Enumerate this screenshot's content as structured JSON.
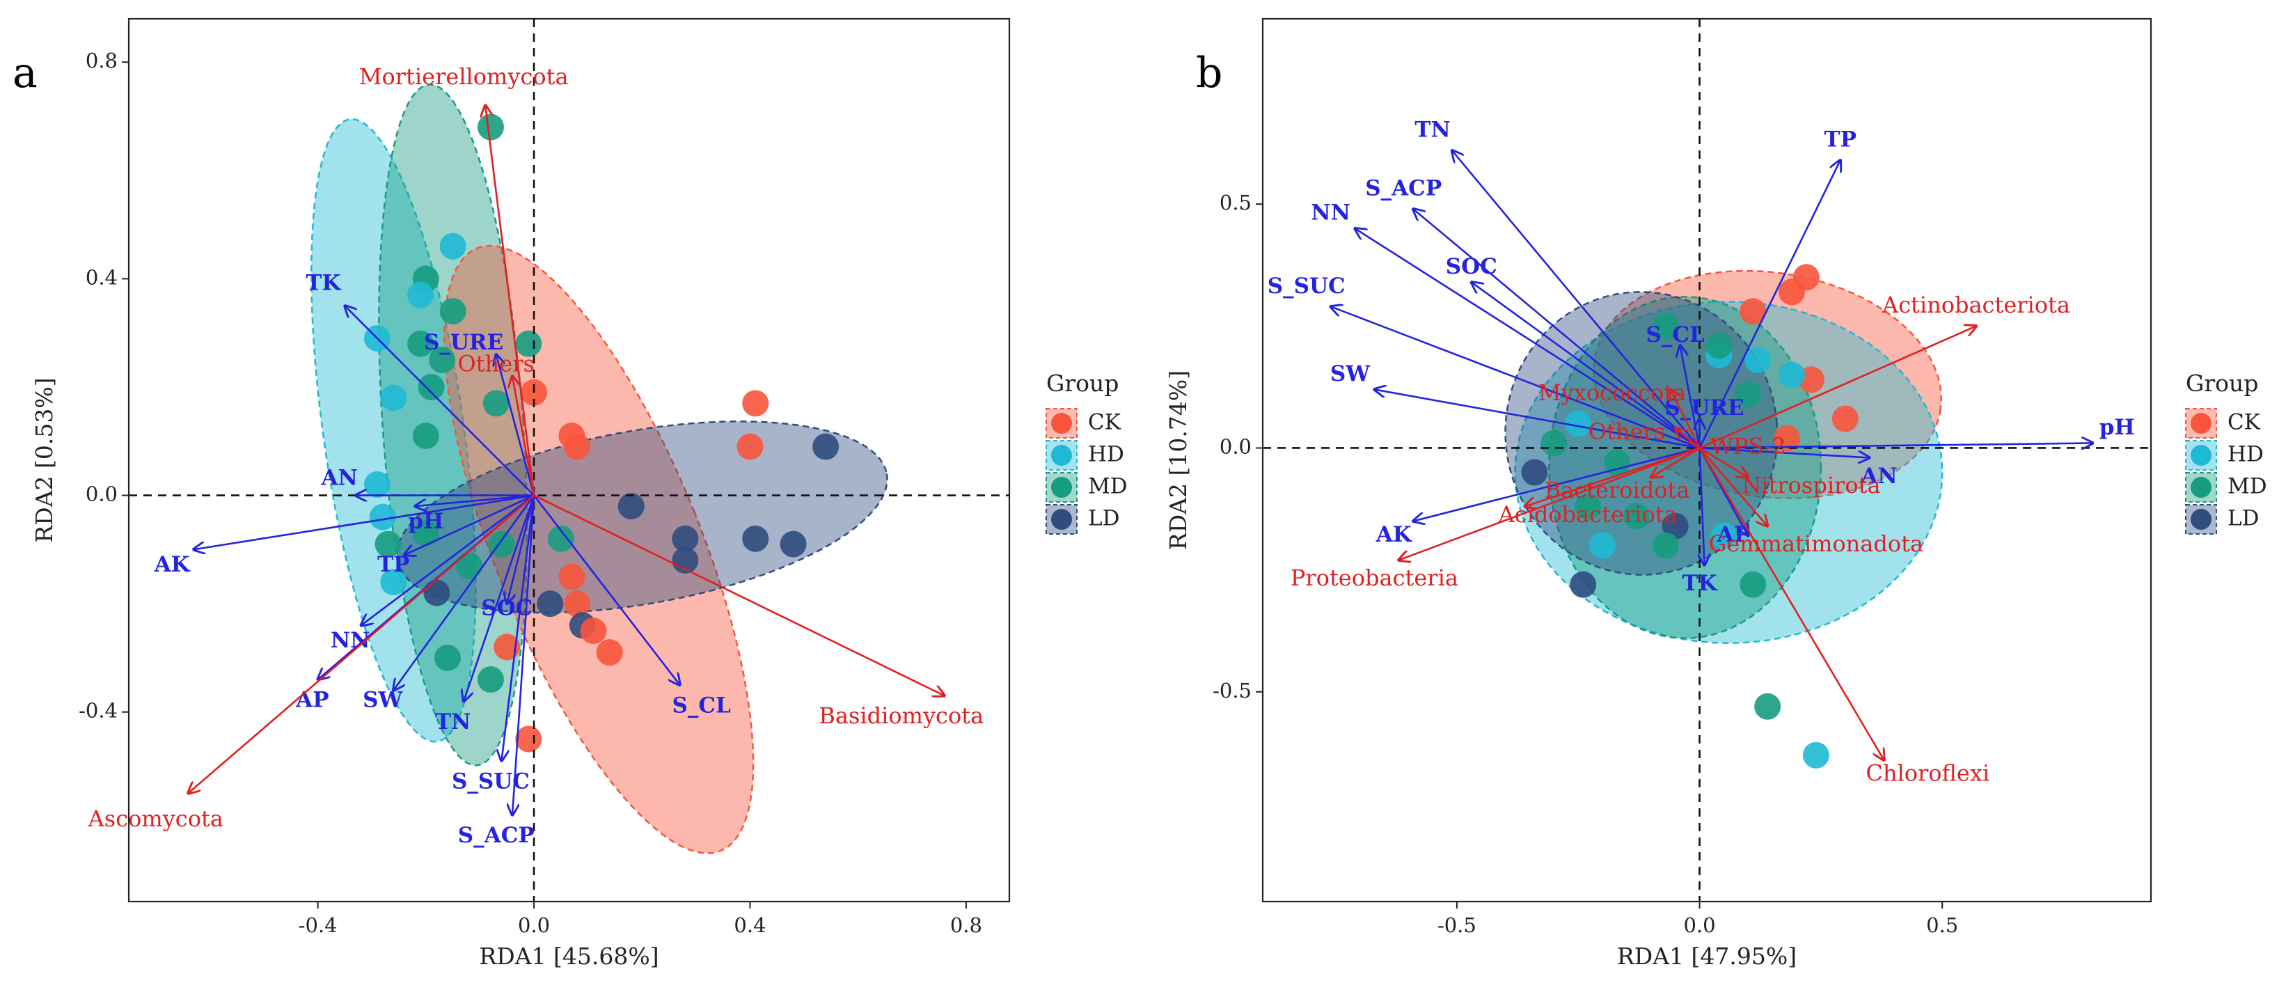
{
  "colors": {
    "CK": "#F8553C",
    "HD": "#1FB9D5",
    "MD": "#169C80",
    "LD": "#2F4D7E",
    "env_arrow": "#2323E0",
    "species_arrow": "#E02020"
  },
  "chart_data": [
    {
      "panel": "a",
      "type": "scatter",
      "xlabel": "RDA1 [45.68%]",
      "ylabel": "RDA2 [0.53%]",
      "xlim": [
        -0.75,
        0.88
      ],
      "ylim": [
        -0.75,
        0.88
      ],
      "xticks": [
        -0.4,
        0.0,
        0.4,
        0.8
      ],
      "yticks": [
        -0.4,
        0.0,
        0.4,
        0.8
      ],
      "xtick_labels": [
        "-0.4",
        "0.0",
        "0.4",
        "0.8"
      ],
      "ytick_labels": [
        "-0.4",
        "0.0",
        "0.4",
        "0.8"
      ],
      "grid": false,
      "legend_title": "Group",
      "legend": [
        {
          "key": "CK",
          "label": "CK"
        },
        {
          "key": "HD",
          "label": "HD"
        },
        {
          "key": "MD",
          "label": "MD"
        },
        {
          "key": "LD",
          "label": "LD"
        }
      ],
      "legend_position": "right",
      "ellipses": [
        {
          "group": "HD",
          "cx": -0.26,
          "cy": 0.12,
          "rx": 0.13,
          "ry": 0.58,
          "angle": 8
        },
        {
          "group": "MD",
          "cx": -0.15,
          "cy": 0.13,
          "rx": 0.13,
          "ry": 0.63,
          "angle": 4
        },
        {
          "group": "CK",
          "cx": 0.12,
          "cy": -0.1,
          "rx": 0.19,
          "ry": 0.6,
          "angle": 22
        },
        {
          "group": "LD",
          "cx": 0.2,
          "cy": -0.04,
          "rx": 0.46,
          "ry": 0.16,
          "angle": 10
        }
      ],
      "points": [
        {
          "group": "MD",
          "x": -0.08,
          "y": 0.68
        },
        {
          "group": "HD",
          "x": -0.15,
          "y": 0.46
        },
        {
          "group": "MD",
          "x": -0.2,
          "y": 0.4
        },
        {
          "group": "HD",
          "x": -0.21,
          "y": 0.37
        },
        {
          "group": "MD",
          "x": -0.15,
          "y": 0.34
        },
        {
          "group": "HD",
          "x": -0.29,
          "y": 0.29
        },
        {
          "group": "MD",
          "x": -0.21,
          "y": 0.28
        },
        {
          "group": "MD",
          "x": -0.17,
          "y": 0.25
        },
        {
          "group": "MD",
          "x": -0.01,
          "y": 0.28
        },
        {
          "group": "CK",
          "x": 0.0,
          "y": 0.19
        },
        {
          "group": "HD",
          "x": -0.26,
          "y": 0.18
        },
        {
          "group": "MD",
          "x": -0.19,
          "y": 0.2
        },
        {
          "group": "MD",
          "x": -0.07,
          "y": 0.17
        },
        {
          "group": "MD",
          "x": -0.2,
          "y": 0.11
        },
        {
          "group": "CK",
          "x": 0.07,
          "y": 0.11
        },
        {
          "group": "CK",
          "x": 0.08,
          "y": 0.09
        },
        {
          "group": "CK",
          "x": 0.41,
          "y": 0.17
        },
        {
          "group": "CK",
          "x": 0.4,
          "y": 0.09
        },
        {
          "group": "LD",
          "x": 0.54,
          "y": 0.09
        },
        {
          "group": "HD",
          "x": -0.29,
          "y": 0.02
        },
        {
          "group": "HD",
          "x": -0.28,
          "y": -0.04
        },
        {
          "group": "MD",
          "x": -0.27,
          "y": -0.09
        },
        {
          "group": "HD",
          "x": -0.26,
          "y": -0.16
        },
        {
          "group": "MD",
          "x": -0.2,
          "y": -0.07
        },
        {
          "group": "MD",
          "x": -0.12,
          "y": -0.13
        },
        {
          "group": "MD",
          "x": -0.06,
          "y": -0.09
        },
        {
          "group": "MD",
          "x": 0.05,
          "y": -0.08
        },
        {
          "group": "LD",
          "x": 0.18,
          "y": -0.02
        },
        {
          "group": "LD",
          "x": 0.28,
          "y": -0.08
        },
        {
          "group": "LD",
          "x": 0.28,
          "y": -0.12
        },
        {
          "group": "LD",
          "x": 0.41,
          "y": -0.08
        },
        {
          "group": "LD",
          "x": 0.48,
          "y": -0.09
        },
        {
          "group": "CK",
          "x": 0.07,
          "y": -0.15
        },
        {
          "group": "CK",
          "x": 0.08,
          "y": -0.2
        },
        {
          "group": "LD",
          "x": 0.03,
          "y": -0.2
        },
        {
          "group": "LD",
          "x": 0.09,
          "y": -0.24
        },
        {
          "group": "CK",
          "x": 0.11,
          "y": -0.25
        },
        {
          "group": "CK",
          "x": 0.14,
          "y": -0.29
        },
        {
          "group": "CK",
          "x": -0.05,
          "y": -0.28
        },
        {
          "group": "MD",
          "x": -0.16,
          "y": -0.3
        },
        {
          "group": "MD",
          "x": -0.08,
          "y": -0.34
        },
        {
          "group": "CK",
          "x": -0.01,
          "y": -0.45
        },
        {
          "group": "LD",
          "x": -0.18,
          "y": -0.18
        }
      ],
      "env_vectors": [
        {
          "label": "TK",
          "x": -0.35,
          "y": 0.35,
          "label_dx": -0.04,
          "label_dy": 0.04
        },
        {
          "label": "S_URE",
          "x": -0.07,
          "y": 0.26,
          "label_dx": -0.06,
          "label_dy": 0.02
        },
        {
          "label": "AN",
          "x": -0.33,
          "y": 0.0,
          "label_dx": -0.03,
          "label_dy": 0.03
        },
        {
          "label": "pH",
          "x": -0.22,
          "y": -0.02,
          "label_dx": 0.02,
          "label_dy": -0.03
        },
        {
          "label": "AK",
          "x": -0.63,
          "y": -0.1,
          "label_dx": -0.04,
          "label_dy": -0.03
        },
        {
          "label": "TP",
          "x": -0.24,
          "y": -0.11,
          "label_dx": -0.02,
          "label_dy": -0.02
        },
        {
          "label": "NN",
          "x": -0.32,
          "y": -0.24,
          "label_dx": -0.02,
          "label_dy": -0.03
        },
        {
          "label": "AP",
          "x": -0.4,
          "y": -0.34,
          "label_dx": -0.01,
          "label_dy": -0.04
        },
        {
          "label": "SW",
          "x": -0.26,
          "y": -0.36,
          "label_dx": -0.02,
          "label_dy": -0.02
        },
        {
          "label": "SOC",
          "x": -0.05,
          "y": -0.2,
          "label_dx": 0.0,
          "label_dy": -0.01
        },
        {
          "label": "TN",
          "x": -0.13,
          "y": -0.38,
          "label_dx": -0.02,
          "label_dy": -0.04
        },
        {
          "label": "S_SUC",
          "x": -0.06,
          "y": -0.49,
          "label_dx": -0.02,
          "label_dy": -0.04
        },
        {
          "label": "S_ACP",
          "x": -0.04,
          "y": -0.59,
          "label_dx": -0.03,
          "label_dy": -0.04
        },
        {
          "label": "S_CL",
          "x": 0.27,
          "y": -0.35,
          "label_dx": 0.04,
          "label_dy": -0.04
        }
      ],
      "species_vectors": [
        {
          "label": "Mortierellomycota",
          "x": -0.09,
          "y": 0.72,
          "label_dx": -0.04,
          "label_dy": 0.05
        },
        {
          "label": "Others",
          "x": -0.04,
          "y": 0.22,
          "label_dx": -0.03,
          "label_dy": 0.02
        },
        {
          "label": "Ascomycota",
          "x": -0.64,
          "y": -0.55,
          "label_dx": -0.06,
          "label_dy": -0.05
        },
        {
          "label": "Basidiomycota",
          "x": 0.76,
          "y": -0.37,
          "label_dx": -0.08,
          "label_dy": -0.04
        }
      ]
    },
    {
      "panel": "b",
      "type": "scatter",
      "xlabel": "RDA1 [47.95%]",
      "ylabel": "RDA2 [10.74%]",
      "xlim": [
        -0.9,
        0.93
      ],
      "ylim": [
        -0.93,
        0.88
      ],
      "xticks": [
        -0.5,
        0.0,
        0.5
      ],
      "yticks": [
        -0.5,
        0.0,
        0.5
      ],
      "xtick_labels": [
        "-0.5",
        "0.0",
        "0.5"
      ],
      "ytick_labels": [
        "-0.5",
        "0.0",
        "0.5"
      ],
      "grid": false,
      "legend_title": "Group",
      "legend": [
        {
          "key": "CK",
          "label": "CK"
        },
        {
          "key": "HD",
          "label": "HD"
        },
        {
          "key": "MD",
          "label": "MD"
        },
        {
          "key": "LD",
          "label": "LD"
        }
      ],
      "legend_position": "right",
      "ellipses": [
        {
          "group": "CK",
          "cx": 0.14,
          "cy": 0.13,
          "rx": 0.36,
          "ry": 0.23,
          "angle": -8
        },
        {
          "group": "HD",
          "cx": 0.06,
          "cy": -0.05,
          "rx": 0.44,
          "ry": 0.35,
          "angle": 0
        },
        {
          "group": "MD",
          "cx": -0.03,
          "cy": -0.04,
          "rx": 0.28,
          "ry": 0.35,
          "angle": 0
        },
        {
          "group": "LD",
          "cx": -0.12,
          "cy": 0.03,
          "rx": 0.28,
          "ry": 0.29,
          "angle": 5
        }
      ],
      "points": [
        {
          "group": "CK",
          "x": 0.22,
          "y": 0.35
        },
        {
          "group": "CK",
          "x": 0.19,
          "y": 0.32
        },
        {
          "group": "CK",
          "x": 0.11,
          "y": 0.28
        },
        {
          "group": "CK",
          "x": 0.23,
          "y": 0.14
        },
        {
          "group": "CK",
          "x": 0.3,
          "y": 0.06
        },
        {
          "group": "CK",
          "x": 0.18,
          "y": 0.02
        },
        {
          "group": "MD",
          "x": -0.07,
          "y": 0.25
        },
        {
          "group": "HD",
          "x": 0.04,
          "y": 0.19
        },
        {
          "group": "MD",
          "x": 0.04,
          "y": 0.21
        },
        {
          "group": "HD",
          "x": 0.12,
          "y": 0.18
        },
        {
          "group": "HD",
          "x": 0.19,
          "y": 0.15
        },
        {
          "group": "MD",
          "x": 0.1,
          "y": 0.11
        },
        {
          "group": "MD",
          "x": -0.3,
          "y": 0.01
        },
        {
          "group": "HD",
          "x": -0.25,
          "y": 0.05
        },
        {
          "group": "MD",
          "x": -0.17,
          "y": -0.03
        },
        {
          "group": "MD",
          "x": -0.23,
          "y": -0.12
        },
        {
          "group": "MD",
          "x": -0.13,
          "y": -0.14
        },
        {
          "group": "LD",
          "x": -0.34,
          "y": -0.05
        },
        {
          "group": "LD",
          "x": -0.24,
          "y": -0.28
        },
        {
          "group": "LD",
          "x": -0.05,
          "y": -0.16
        },
        {
          "group": "HD",
          "x": -0.2,
          "y": -0.2
        },
        {
          "group": "MD",
          "x": -0.07,
          "y": -0.2
        },
        {
          "group": "MD",
          "x": 0.11,
          "y": -0.28
        },
        {
          "group": "HD",
          "x": 0.05,
          "y": -0.18
        },
        {
          "group": "MD",
          "x": 0.14,
          "y": -0.53
        },
        {
          "group": "HD",
          "x": 0.24,
          "y": -0.63
        }
      ],
      "env_vectors": [
        {
          "label": "TN",
          "x": -0.51,
          "y": 0.61,
          "label_dx": -0.04,
          "label_dy": 0.04
        },
        {
          "label": "TP",
          "x": 0.29,
          "y": 0.59,
          "label_dx": 0.0,
          "label_dy": 0.04
        },
        {
          "label": "S_ACP",
          "x": -0.59,
          "y": 0.49,
          "label_dx": -0.02,
          "label_dy": 0.04
        },
        {
          "label": "NN",
          "x": -0.71,
          "y": 0.45,
          "label_dx": -0.05,
          "label_dy": 0.03
        },
        {
          "label": "SOC",
          "x": -0.47,
          "y": 0.34,
          "label_dx": 0.0,
          "label_dy": 0.03
        },
        {
          "label": "S_SUC",
          "x": -0.76,
          "y": 0.29,
          "label_dx": -0.05,
          "label_dy": 0.04
        },
        {
          "label": "SW",
          "x": -0.67,
          "y": 0.12,
          "label_dx": -0.05,
          "label_dy": 0.03
        },
        {
          "label": "S_CL",
          "x": -0.04,
          "y": 0.21,
          "label_dx": -0.01,
          "label_dy": 0.02
        },
        {
          "label": "S_URE",
          "x": 0.0,
          "y": 0.06,
          "label_dx": 0.01,
          "label_dy": 0.02
        },
        {
          "label": "pH",
          "x": 0.81,
          "y": 0.01,
          "label_dx": 0.05,
          "label_dy": 0.03
        },
        {
          "label": "AN",
          "x": 0.35,
          "y": -0.02,
          "label_dx": 0.02,
          "label_dy": -0.04
        },
        {
          "label": "AK",
          "x": -0.59,
          "y": -0.15,
          "label_dx": -0.04,
          "label_dy": -0.03
        },
        {
          "label": "AP",
          "x": 0.1,
          "y": -0.18,
          "label_dx": -0.03,
          "label_dy": 0.0
        },
        {
          "label": "TK",
          "x": 0.01,
          "y": -0.24,
          "label_dx": -0.01,
          "label_dy": -0.04
        }
      ],
      "species_vectors": [
        {
          "label": "Actinobacteriota",
          "x": 0.57,
          "y": 0.25,
          "label_dx": 0.0,
          "label_dy": 0.04
        },
        {
          "label": "Myxococcota",
          "x": -0.06,
          "y": 0.12,
          "label_dx": -0.12,
          "label_dy": -0.01
        },
        {
          "label": "Others",
          "x": -0.05,
          "y": 0.04,
          "label_dx": -0.1,
          "label_dy": -0.01
        },
        {
          "label": "WPS-2",
          "x": 0.0,
          "y": 0.0,
          "label_dx": 0.1,
          "label_dy": 0.0
        },
        {
          "label": "Bacteroidota",
          "x": -0.1,
          "y": -0.06,
          "label_dx": -0.07,
          "label_dy": -0.03
        },
        {
          "label": "Nitrospirota",
          "x": 0.1,
          "y": -0.06,
          "label_dx": 0.13,
          "label_dy": -0.02
        },
        {
          "label": "Acidobacteriota",
          "x": -0.36,
          "y": -0.12,
          "label_dx": 0.13,
          "label_dy": -0.02
        },
        {
          "label": "Gemmatimonadota",
          "x": 0.14,
          "y": -0.16,
          "label_dx": 0.1,
          "label_dy": -0.04
        },
        {
          "label": "Proteobacteria",
          "x": -0.62,
          "y": -0.23,
          "label_dx": -0.05,
          "label_dy": -0.04
        },
        {
          "label": "Chloroflexi",
          "x": 0.38,
          "y": -0.64,
          "label_dx": 0.09,
          "label_dy": -0.03
        }
      ]
    }
  ]
}
